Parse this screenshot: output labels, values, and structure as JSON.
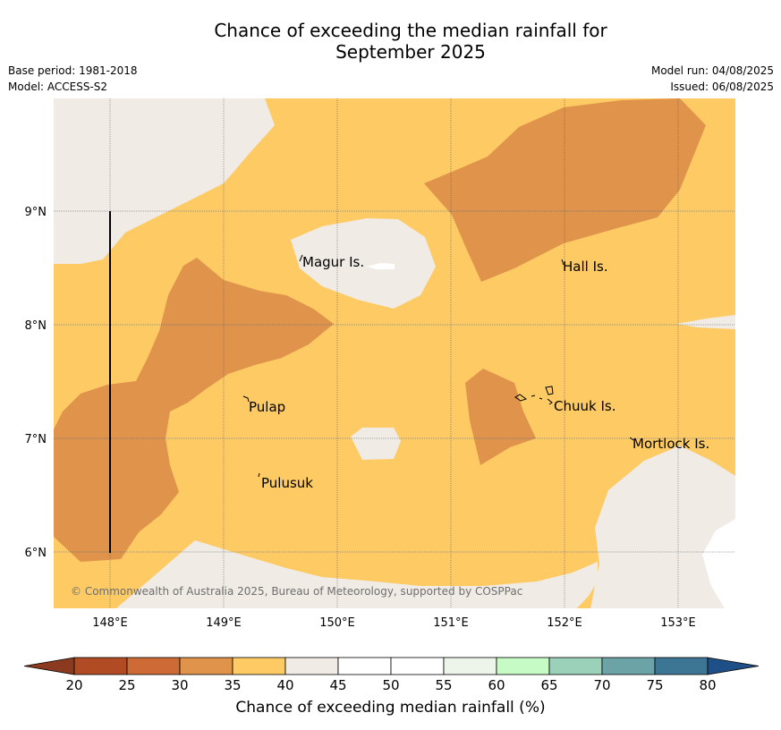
{
  "title_line1": "Chance of exceeding the median rainfall for",
  "title_line2": "September 2025",
  "base_period": "Base period: 1981-2018",
  "model": "Model: ACCESS-S2",
  "model_run": "Model run: 04/08/2025",
  "issued": "Issued: 06/08/2025",
  "copyright": "© Commonwealth of Australia 2025, Bureau of Meteorology, supported by COSPPac",
  "map": {
    "lon_ticks": [
      "148°E",
      "149°E",
      "150°E",
      "151°E",
      "152°E",
      "153°E"
    ],
    "lat_ticks": [
      "9°N",
      "8°N",
      "7°N",
      "6°N"
    ],
    "places": [
      {
        "name": "Magur Is."
      },
      {
        "name": "Hall Is."
      },
      {
        "name": "Pulap"
      },
      {
        "name": "Chuuk Is."
      },
      {
        "name": "Mortlock Is."
      },
      {
        "name": "Pulusuk"
      }
    ],
    "colors": {
      "c30_35": "#e0934a",
      "c35_40": "#fdca64",
      "c40_45": "#f0ebe5",
      "c45_55": "#ffffff"
    }
  },
  "colorbar": {
    "label": "Chance of exceeding median rainfall (%)",
    "ticks": [
      "20",
      "25",
      "30",
      "35",
      "40",
      "45",
      "50",
      "55",
      "60",
      "65",
      "70",
      "75",
      "80"
    ],
    "colors": [
      "#b04b24",
      "#cd6a35",
      "#e0934a",
      "#fdca64",
      "#f0ebe5",
      "#ffffff",
      "#ffffff",
      "#edf5ea",
      "#c6fbc5",
      "#9bd1b8",
      "#6ca3a6",
      "#3d7594"
    ],
    "under_color": "#8c3a1f",
    "over_color": "#1e4f86"
  }
}
